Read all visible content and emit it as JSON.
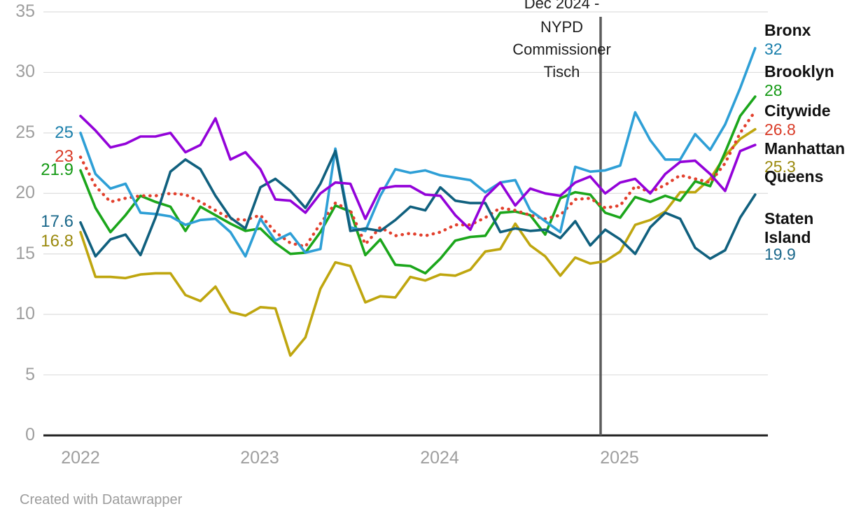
{
  "footer": {
    "credit": "Created with Datawrapper"
  },
  "chart_data": {
    "type": "line",
    "x": "months from Jan 2022 to Oct 2025 (monthly)",
    "x_tick_labels": [
      "2022",
      "2023",
      "2024",
      "2025"
    ],
    "yticks": [
      0,
      5,
      10,
      15,
      20,
      25,
      30,
      35
    ],
    "ylim": [
      0,
      35
    ],
    "grid": "horizontal",
    "annotation": {
      "text": "Dec 2024 - NYPD Commissioner Tisch",
      "lines": [
        "Dec 2024 -",
        "NYPD",
        "Commissioner",
        "Tisch"
      ],
      "x_position": "Dec 2024",
      "line_color": "#5b5b5b"
    },
    "series": [
      {
        "name": "Bronx",
        "color": "#2e9fd6",
        "label_color": "#1a7fab",
        "style": "solid",
        "start_label": "25",
        "end_label": "32",
        "values": [
          25,
          21.6,
          20.4,
          20.8,
          18.4,
          18.3,
          18.1,
          17.4,
          17.8,
          17.9,
          16.8,
          14.8,
          17.9,
          16.1,
          16.7,
          15.1,
          15.4,
          23.7,
          17.2,
          16.9,
          19.8,
          22,
          21.7,
          21.9,
          21.5,
          21.3,
          21.1,
          20.1,
          20.9,
          21.1,
          18.6,
          17.7,
          16.8,
          22.2,
          21.8,
          21.9,
          22.3,
          26.7,
          24.4,
          22.8,
          22.8,
          24.9,
          23.6,
          25.7,
          28.7,
          32
        ]
      },
      {
        "name": "Brooklyn",
        "color": "#1ba61b",
        "label_color": "#149914",
        "style": "solid",
        "start_label": "21.9",
        "end_label": "28",
        "values": [
          21.9,
          18.8,
          16.8,
          18.2,
          19.8,
          19.3,
          18.9,
          16.9,
          18.9,
          18.2,
          17.5,
          16.9,
          17.1,
          15.9,
          15,
          15.1,
          16.8,
          19,
          18.5,
          14.9,
          16.2,
          14.1,
          14,
          13.4,
          14.6,
          16.1,
          16.4,
          16.5,
          18.4,
          18.5,
          18.2,
          16.6,
          19.6,
          20.1,
          19.9,
          18.4,
          18,
          19.7,
          19.3,
          19.8,
          19.4,
          21,
          20.6,
          23.4,
          26.4,
          28
        ]
      },
      {
        "name": "Citywide",
        "color": "#e2402d",
        "label_color": "#d93b27",
        "style": "dotted",
        "start_label": "23",
        "end_label": "26.8",
        "values": [
          23,
          20.6,
          19.3,
          19.6,
          19.8,
          19.8,
          20,
          19.9,
          19.3,
          18.6,
          17.9,
          17.8,
          18.2,
          16.8,
          15.9,
          15.6,
          17.5,
          19.2,
          18.6,
          15.8,
          17.2,
          16.5,
          16.7,
          16.5,
          16.8,
          17.4,
          17.4,
          18,
          18.8,
          18.6,
          18.2,
          17.9,
          18.2,
          19.5,
          19.6,
          18.8,
          19,
          20.6,
          20.1,
          20.7,
          21.5,
          21.2,
          20.9,
          22.5,
          25,
          26.8
        ]
      },
      {
        "name": "Manhattan",
        "color": "#9302d9",
        "label_color": "#9302d9",
        "style": "solid",
        "start_label": "",
        "end_label": "",
        "values": [
          26.4,
          25.2,
          23.8,
          24.1,
          24.7,
          24.7,
          25,
          23.4,
          24,
          26.2,
          22.8,
          23.4,
          22,
          19.5,
          19.4,
          18.4,
          20,
          20.9,
          20.8,
          17.9,
          20.4,
          20.6,
          20.6,
          19.9,
          19.8,
          18.2,
          17,
          19.7,
          20.9,
          19,
          20.4,
          20,
          19.8,
          20.9,
          21.4,
          20,
          20.9,
          21.2,
          20,
          21.6,
          22.6,
          22.7,
          21.6,
          20.2,
          23.5,
          24
        ]
      },
      {
        "name": "Queens",
        "color": "#bfa60f",
        "label_color": "#9a890d",
        "style": "solid",
        "start_label": "16.8",
        "end_label": "25.3",
        "values": [
          16.8,
          13.1,
          13.1,
          13,
          13.3,
          13.4,
          13.4,
          11.6,
          11.1,
          12.3,
          10.2,
          9.9,
          10.6,
          10.5,
          6.6,
          8.1,
          12.1,
          14.3,
          14,
          11,
          11.5,
          11.4,
          13.1,
          12.8,
          13.3,
          13.2,
          13.7,
          15.2,
          15.4,
          17.5,
          15.7,
          14.8,
          13.2,
          14.7,
          14.2,
          14.4,
          15.2,
          17.4,
          17.8,
          18.5,
          20.1,
          20.1,
          21.2,
          23.1,
          24.5,
          25.3
        ]
      },
      {
        "name": "Staten Island",
        "color": "#10607e",
        "label_color": "#19678a",
        "style": "solid",
        "start_label": "17.6",
        "end_label": "19.9",
        "values": [
          17.6,
          14.8,
          16.2,
          16.6,
          14.9,
          18,
          21.8,
          22.8,
          22,
          19.8,
          18,
          17.1,
          20.5,
          21.2,
          20.2,
          18.8,
          20.8,
          23.5,
          16.9,
          17.1,
          16.9,
          17.8,
          18.9,
          18.6,
          20.5,
          19.4,
          19.2,
          19.2,
          16.8,
          17.1,
          16.9,
          17,
          16.3,
          17.7,
          15.7,
          17,
          16.2,
          15,
          17.2,
          18.4,
          17.9,
          15.5,
          14.6,
          15.3,
          18,
          19.9
        ]
      }
    ]
  }
}
